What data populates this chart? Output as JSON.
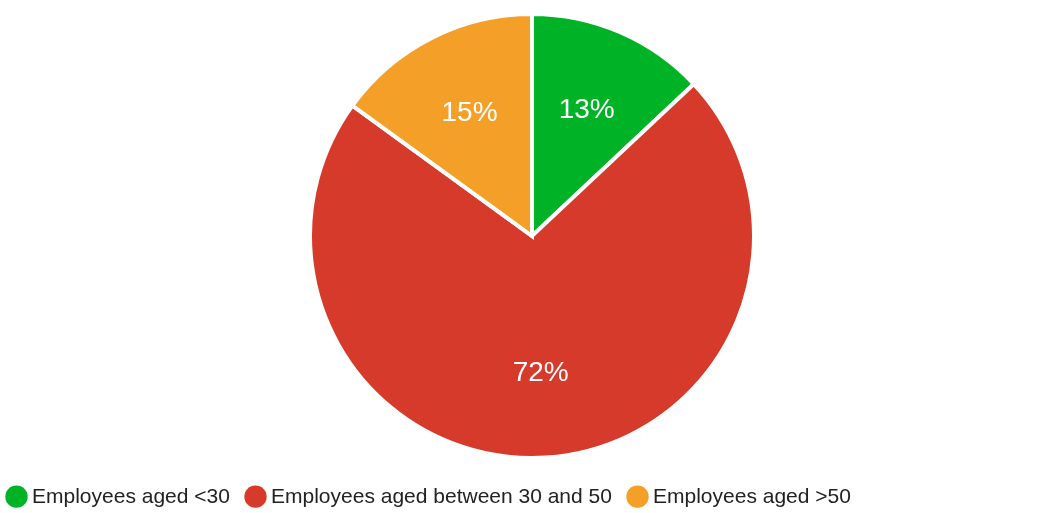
{
  "chart_data": {
    "type": "pie",
    "categories": [
      "Employees aged <30",
      "Employees aged between 30 and 50",
      "Employees aged >50"
    ],
    "values": [
      13,
      72,
      15
    ],
    "colors": [
      "#00b226",
      "#d63a2a",
      "#f4a028"
    ],
    "value_labels": [
      "13%",
      "72%",
      "15%"
    ],
    "legend": "bottom"
  }
}
